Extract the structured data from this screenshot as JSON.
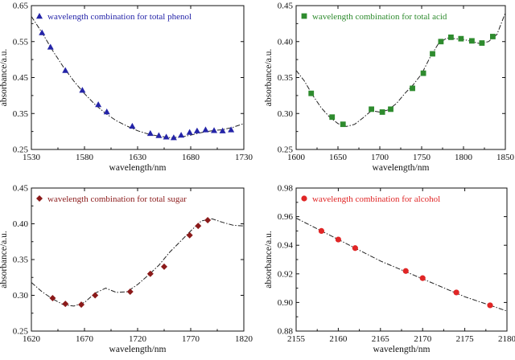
{
  "chart_data": [
    {
      "type": "scatter",
      "panel": "top-left",
      "xlabel": "wavelength/nm",
      "ylabel": "absorbance/a.u.",
      "xlim": [
        1530,
        1730
      ],
      "ylim": [
        0.25,
        0.65
      ],
      "xticks": [
        1530,
        1580,
        1630,
        1680,
        1730
      ],
      "yticks": [
        0.25,
        0.35,
        0.45,
        0.55,
        0.65
      ],
      "xtick_labels": [
        "1530",
        "1580",
        "1630",
        "1680",
        "1730"
      ],
      "ytick_labels": [
        "0.25",
        "0.35",
        "0.45",
        "0.55",
        "0.65"
      ],
      "legend": "upper-left",
      "series": [
        {
          "name": "wavelength combination for total phenol",
          "marker": "triangle",
          "color": "#2424a8",
          "x": [
            1540,
            1548,
            1562,
            1578,
            1593,
            1601,
            1625,
            1642,
            1650,
            1657,
            1664,
            1671,
            1679,
            1686,
            1694,
            1702,
            1710,
            1718
          ],
          "y": [
            0.575,
            0.535,
            0.47,
            0.415,
            0.375,
            0.355,
            0.315,
            0.295,
            0.289,
            0.285,
            0.283,
            0.29,
            0.298,
            0.302,
            0.305,
            0.303,
            0.302,
            0.305
          ]
        },
        {
          "name": "",
          "style": "dash-dot",
          "color": "#222222",
          "x": [
            1530,
            1540,
            1550,
            1560,
            1570,
            1580,
            1590,
            1600,
            1610,
            1620,
            1630,
            1640,
            1650,
            1660,
            1670,
            1680,
            1690,
            1700,
            1710,
            1720,
            1730
          ],
          "y": [
            0.62,
            0.575,
            0.525,
            0.48,
            0.44,
            0.405,
            0.375,
            0.35,
            0.33,
            0.315,
            0.302,
            0.293,
            0.287,
            0.283,
            0.284,
            0.29,
            0.297,
            0.302,
            0.305,
            0.312,
            0.322
          ]
        }
      ]
    },
    {
      "type": "scatter",
      "panel": "top-right",
      "xlabel": "wavelength/nm",
      "ylabel": "absorbance/a.u.",
      "xlim": [
        1600,
        1850
      ],
      "ylim": [
        0.25,
        0.45
      ],
      "xticks": [
        1600,
        1650,
        1700,
        1750,
        1800,
        1850
      ],
      "yticks": [
        0.25,
        0.3,
        0.35,
        0.4,
        0.45
      ],
      "xtick_labels": [
        "1600",
        "1650",
        "1700",
        "1750",
        "1800",
        "1850"
      ],
      "ytick_labels": [
        "0.25",
        "0.30",
        "0.35",
        "0.40",
        "0.45"
      ],
      "legend": "upper-left",
      "series": [
        {
          "name": "wavelength combination for total acid",
          "marker": "square",
          "color": "#2e8b2e",
          "x": [
            1618,
            1643,
            1656,
            1690,
            1703,
            1713,
            1739,
            1752,
            1763,
            1773,
            1785,
            1797,
            1810,
            1822,
            1835
          ],
          "y": [
            0.328,
            0.295,
            0.285,
            0.306,
            0.302,
            0.306,
            0.335,
            0.356,
            0.383,
            0.4,
            0.406,
            0.404,
            0.401,
            0.398,
            0.407
          ]
        },
        {
          "name": "",
          "style": "dash-dot",
          "color": "#222222",
          "x": [
            1600,
            1610,
            1620,
            1630,
            1640,
            1650,
            1660,
            1670,
            1680,
            1690,
            1700,
            1710,
            1720,
            1730,
            1740,
            1750,
            1760,
            1770,
            1780,
            1790,
            1800,
            1810,
            1820,
            1830,
            1840,
            1850
          ],
          "y": [
            0.36,
            0.345,
            0.325,
            0.308,
            0.295,
            0.286,
            0.282,
            0.285,
            0.294,
            0.304,
            0.302,
            0.305,
            0.314,
            0.328,
            0.34,
            0.355,
            0.378,
            0.397,
            0.405,
            0.404,
            0.403,
            0.4,
            0.397,
            0.4,
            0.41,
            0.44
          ]
        }
      ]
    },
    {
      "type": "scatter",
      "panel": "bottom-left",
      "xlabel": "wavelength/nm",
      "ylabel": "absorbance/a.u.",
      "xlim": [
        1620,
        1820
      ],
      "ylim": [
        0.25,
        0.45
      ],
      "xticks": [
        1620,
        1670,
        1720,
        1770,
        1820
      ],
      "yticks": [
        0.25,
        0.3,
        0.35,
        0.4,
        0.45
      ],
      "xtick_labels": [
        "1620",
        "1670",
        "1720",
        "1770",
        "1820"
      ],
      "ytick_labels": [
        "0.25",
        "0.30",
        "0.35",
        "0.40",
        "0.45"
      ],
      "legend": "upper-left",
      "series": [
        {
          "name": "wavelength combination for total sugar",
          "marker": "diamond",
          "color": "#8b1a1a",
          "x": [
            1640,
            1652,
            1667,
            1680,
            1713,
            1732,
            1745,
            1769,
            1777,
            1786
          ],
          "y": [
            0.296,
            0.288,
            0.287,
            0.3,
            0.305,
            0.33,
            0.34,
            0.384,
            0.397,
            0.405
          ]
        },
        {
          "name": "",
          "style": "dash-dot",
          "color": "#222222",
          "x": [
            1620,
            1630,
            1640,
            1650,
            1660,
            1670,
            1680,
            1690,
            1700,
            1710,
            1720,
            1730,
            1740,
            1750,
            1760,
            1770,
            1780,
            1790,
            1800,
            1810,
            1820
          ],
          "y": [
            0.318,
            0.305,
            0.295,
            0.287,
            0.285,
            0.29,
            0.303,
            0.31,
            0.304,
            0.305,
            0.315,
            0.328,
            0.342,
            0.36,
            0.375,
            0.39,
            0.404,
            0.407,
            0.402,
            0.398,
            0.397
          ]
        }
      ]
    },
    {
      "type": "scatter",
      "panel": "bottom-right",
      "xlabel": "wavelength/nm",
      "ylabel": "absorbance/a.u.",
      "xlim": [
        2155,
        2180
      ],
      "ylim": [
        0.88,
        0.98
      ],
      "xticks": [
        2155,
        2160,
        2165,
        2170,
        2175,
        2180
      ],
      "yticks": [
        0.88,
        0.9,
        0.92,
        0.94,
        0.96,
        0.98
      ],
      "xtick_labels": [
        "2155",
        "2160",
        "2165",
        "2170",
        "2175",
        "2180"
      ],
      "ytick_labels": [
        "0.88",
        "0.90",
        "0.92",
        "0.94",
        "0.96",
        "0.98"
      ],
      "legend": "upper-left",
      "series": [
        {
          "name": "wavelength combination for alcohol",
          "marker": "circle",
          "color": "#e02626",
          "x": [
            2158,
            2160,
            2162,
            2168,
            2170,
            2174,
            2178
          ],
          "y": [
            0.95,
            0.944,
            0.938,
            0.922,
            0.917,
            0.907,
            0.898
          ]
        },
        {
          "name": "",
          "style": "dash-dot",
          "color": "#222222",
          "x": [
            2155,
            2157,
            2159,
            2161,
            2163,
            2165,
            2167,
            2169,
            2171,
            2173,
            2175,
            2177,
            2179,
            2180
          ],
          "y": [
            0.959,
            0.953,
            0.947,
            0.941,
            0.935,
            0.929,
            0.924,
            0.919,
            0.914,
            0.909,
            0.904,
            0.9,
            0.896,
            0.894
          ]
        }
      ]
    }
  ]
}
